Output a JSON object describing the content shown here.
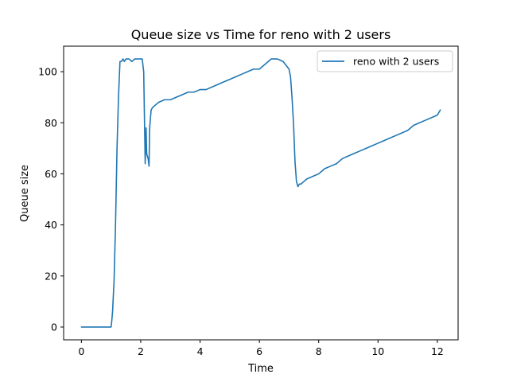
{
  "chart_data": {
    "type": "line",
    "title": "Queue size vs Time for reno with 2 users",
    "xlabel": "Time",
    "ylabel": "Queue size",
    "xlim": [
      -0.6,
      12.7
    ],
    "ylim": [
      -5,
      110
    ],
    "xticks": [
      0,
      2,
      4,
      6,
      8,
      10,
      12
    ],
    "yticks": [
      0,
      20,
      40,
      60,
      80,
      100
    ],
    "grid": false,
    "legend_position": "top-right",
    "series": [
      {
        "name": "reno with 2 users",
        "color": "#1f77b4",
        "x": [
          0,
          0.5,
          1.0,
          1.02,
          1.05,
          1.1,
          1.15,
          1.2,
          1.25,
          1.3,
          1.35,
          1.4,
          1.45,
          1.5,
          1.6,
          1.7,
          1.8,
          1.9,
          2.0,
          2.05,
          2.1,
          2.15,
          2.18,
          2.2,
          2.22,
          2.25,
          2.28,
          2.3,
          2.35,
          2.4,
          2.5,
          2.6,
          2.8,
          3.0,
          3.2,
          3.4,
          3.6,
          3.8,
          4.0,
          4.2,
          4.4,
          4.6,
          4.8,
          5.0,
          5.2,
          5.4,
          5.6,
          5.8,
          6.0,
          6.2,
          6.4,
          6.6,
          6.8,
          7.0,
          7.05,
          7.1,
          7.15,
          7.2,
          7.25,
          7.3,
          7.35,
          7.4,
          7.5,
          7.6,
          7.8,
          8.0,
          8.2,
          8.4,
          8.6,
          8.8,
          9.0,
          9.2,
          9.4,
          9.6,
          9.8,
          10.0,
          10.2,
          10.4,
          10.6,
          10.8,
          11.0,
          11.2,
          11.4,
          11.6,
          11.8,
          12.0,
          12.1
        ],
        "y": [
          0,
          0,
          0,
          2,
          6,
          18,
          40,
          70,
          90,
          104,
          104,
          105,
          104,
          105,
          105,
          104,
          105,
          105,
          105,
          105,
          100,
          64,
          78,
          68,
          67,
          66,
          63,
          78,
          85,
          86,
          87,
          88,
          89,
          89,
          90,
          91,
          92,
          92,
          93,
          93,
          94,
          95,
          96,
          97,
          98,
          99,
          100,
          101,
          101,
          103,
          105,
          105,
          104,
          101,
          98,
          90,
          80,
          65,
          57,
          55,
          56,
          56,
          57,
          58,
          59,
          60,
          62,
          63,
          64,
          66,
          67,
          68,
          69,
          70,
          71,
          72,
          73,
          74,
          75,
          76,
          77,
          79,
          80,
          81,
          82,
          83,
          85
        ]
      }
    ]
  }
}
